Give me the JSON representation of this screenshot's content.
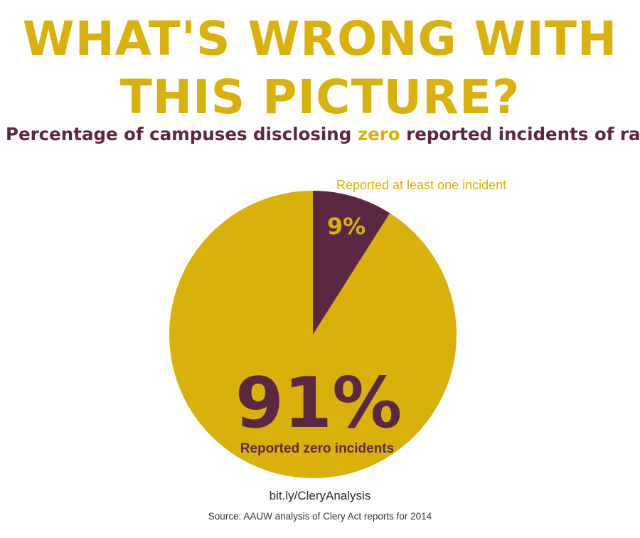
{
  "headline": {
    "line1": "WHAT'S WRONG WITH",
    "line2": "THIS PICTURE?"
  },
  "subtitle": {
    "before": "Percentage of campuses disclosing ",
    "highlight": "zero",
    "after": " reported incidents of rape"
  },
  "colors": {
    "gold": "#d9b10a",
    "plum": "#5c2743",
    "background": "#ffffff"
  },
  "chart_data": {
    "type": "pie",
    "slices": [
      {
        "label": "Reported at least one incident",
        "value": 9,
        "display": "9%",
        "color": "#5c2743"
      },
      {
        "label": "Reported zero incidents",
        "value": 91,
        "display": "91%",
        "color": "#d9b10a"
      }
    ]
  },
  "footer": {
    "link": "bit.ly/CleryAnalysis",
    "source": "Source: AAUW analysis of Clery Act reports for 2014"
  }
}
